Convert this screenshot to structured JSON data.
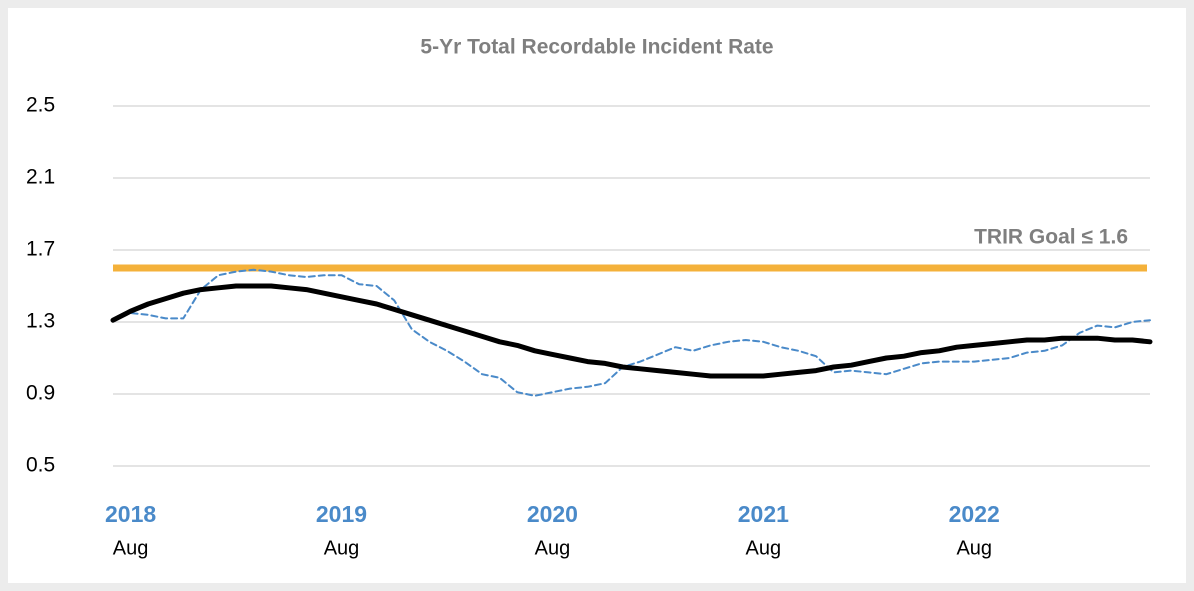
{
  "chart_data": {
    "type": "line",
    "title": "5-Yr Total Recordable Incident Rate",
    "categories": [
      null,
      "Aug",
      null,
      null,
      null,
      null,
      null,
      null,
      null,
      null,
      null,
      null,
      null,
      "Aug",
      null,
      null,
      null,
      null,
      null,
      null,
      null,
      null,
      null,
      null,
      null,
      "Aug",
      null,
      null,
      null,
      null,
      null,
      null,
      null,
      null,
      null,
      null,
      null,
      "Aug",
      null,
      null,
      null,
      null,
      null,
      null,
      null,
      null,
      null,
      null,
      null,
      "Aug",
      null,
      null,
      null,
      null,
      null,
      null,
      null,
      null,
      null,
      null
    ],
    "category_years": [
      null,
      "2018",
      null,
      null,
      null,
      null,
      null,
      null,
      null,
      null,
      null,
      null,
      null,
      "2019",
      null,
      null,
      null,
      null,
      null,
      null,
      null,
      null,
      null,
      null,
      null,
      "2020",
      null,
      null,
      null,
      null,
      null,
      null,
      null,
      null,
      null,
      null,
      null,
      "2021",
      null,
      null,
      null,
      null,
      null,
      null,
      null,
      null,
      null,
      null,
      null,
      "2022",
      null,
      null,
      null,
      null,
      null,
      null,
      null,
      null,
      null,
      null
    ],
    "year_color": "#4a8ac9",
    "series": [
      {
        "color": "#4a8ac9",
        "dashed": true,
        "width": 2,
        "values": [
          1.31,
          1.35,
          1.34,
          1.32,
          1.32,
          1.48,
          1.56,
          1.58,
          1.59,
          1.58,
          1.56,
          1.55,
          1.56,
          1.56,
          1.51,
          1.5,
          1.42,
          1.26,
          1.19,
          1.14,
          1.08,
          1.01,
          0.99,
          0.91,
          0.89,
          0.91,
          0.93,
          0.94,
          0.96,
          1.05,
          1.08,
          1.12,
          1.16,
          1.14,
          1.17,
          1.19,
          1.2,
          1.19,
          1.16,
          1.14,
          1.11,
          1.02,
          1.03,
          1.02,
          1.01,
          1.04,
          1.07,
          1.08,
          1.08,
          1.08,
          1.09,
          1.1,
          1.13,
          1.14,
          1.17,
          1.24,
          1.28,
          1.27,
          1.3,
          1.31
        ]
      },
      {
        "color": "#000000",
        "dashed": false,
        "width": 5,
        "values": [
          1.31,
          1.36,
          1.4,
          1.43,
          1.46,
          1.48,
          1.49,
          1.5,
          1.5,
          1.5,
          1.49,
          1.48,
          1.46,
          1.44,
          1.42,
          1.4,
          1.37,
          1.34,
          1.31,
          1.28,
          1.25,
          1.22,
          1.19,
          1.17,
          1.14,
          1.12,
          1.1,
          1.08,
          1.07,
          1.05,
          1.04,
          1.03,
          1.02,
          1.01,
          1.0,
          1.0,
          1.0,
          1.0,
          1.01,
          1.02,
          1.03,
          1.05,
          1.06,
          1.08,
          1.1,
          1.11,
          1.13,
          1.14,
          1.16,
          1.17,
          1.18,
          1.19,
          1.2,
          1.2,
          1.21,
          1.21,
          1.21,
          1.2,
          1.2,
          1.19
        ]
      }
    ],
    "goal": {
      "value": 1.6,
      "label": "TRIR Goal ≤ 1.6",
      "color": "#f4b13a"
    },
    "ylim": [
      0.5,
      2.5
    ],
    "yticks": [
      0.5,
      0.9,
      1.3,
      1.7,
      2.1,
      2.5
    ],
    "grid": true
  }
}
